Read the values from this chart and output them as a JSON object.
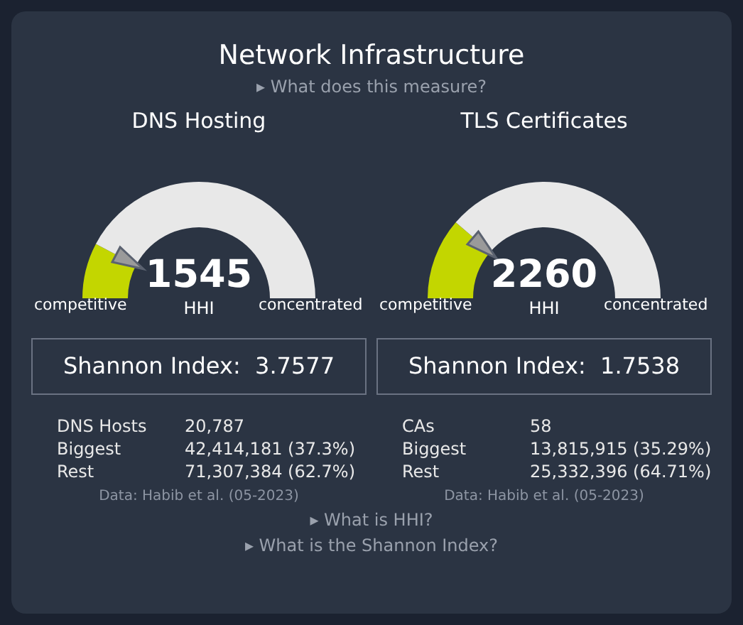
{
  "chart_data": [
    {
      "type": "other",
      "title": "Network Infrastructure",
      "annotations": [
        "▸ What does this measure?",
        "▸ What is HHI?",
        "▸ What is the Shannon Index?"
      ]
    },
    {
      "type": "donut",
      "title": "DNS Hosting",
      "categories": [
        "competitive",
        "concentrated"
      ],
      "values": [
        15.45,
        84.55
      ],
      "colors": [
        "#c3d600",
        "#e8e8e8"
      ],
      "annotations": [
        "1545",
        "HHI",
        "Shannon Index:  3.7577",
        "DNS Hosts",
        "20,787",
        "Biggest",
        "42,414,181 (37.3%)",
        "Rest",
        "71,307,384 (62.7%)",
        "Data: Habib et al. (05-2023)"
      ]
    },
    {
      "type": "donut",
      "title": "TLS Certificates",
      "categories": [
        "competitive",
        "concentrated"
      ],
      "values": [
        22.6,
        77.4
      ],
      "colors": [
        "#c3d600",
        "#e8e8e8"
      ],
      "annotations": [
        "2260",
        "HHI",
        "Shannon Index:  1.7538",
        "CAs",
        "58",
        "Biggest",
        "13,815,915 (35.29%)",
        "Rest",
        "25,332,396 (64.71%)",
        "Data: Habib et al. (05-2023)"
      ]
    }
  ]
}
